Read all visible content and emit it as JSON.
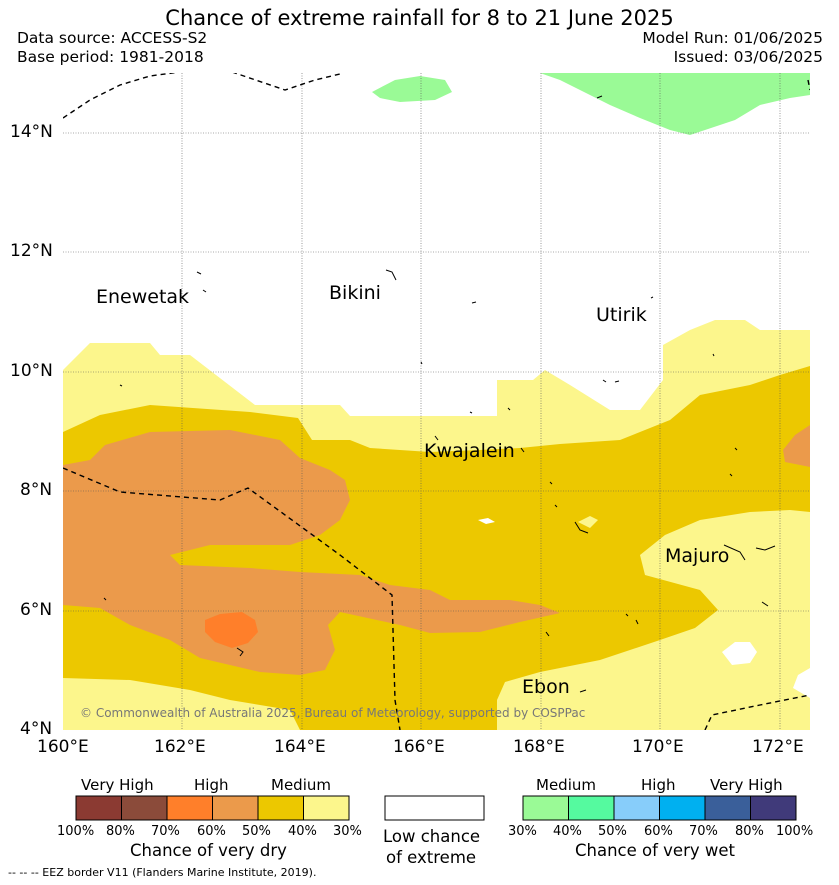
{
  "title": "Chance of extreme rainfall for 8 to 21 June 2025",
  "data_source": "Data source: ACCESS-S2",
  "base_period": "Base period: 1981-2018",
  "model_run": "Model Run: 01/06/2025",
  "issued": "Issued: 03/06/2025",
  "map": {
    "lat_labels": [
      "14°N",
      "12°N",
      "10°N",
      "8°N",
      "6°N",
      "4°N"
    ],
    "lon_labels": [
      "160°E",
      "162°E",
      "164°E",
      "166°E",
      "168°E",
      "170°E",
      "172°E"
    ],
    "places": {
      "enewetak": "Enewetak",
      "bikini": "Bikini",
      "utirik": "Utirik",
      "kwajalein": "Kwajalein",
      "majuro": "Majuro",
      "ebon": "Ebon"
    },
    "copyright": "© Commonwealth of Australia 2025, Bureau of Meteorology, supported by COSPPac",
    "colors": {
      "dry_30_40": "#fcf68c",
      "dry_40_50": "#ecc800",
      "dry_50_60": "#eb9a4b",
      "dry_60_70": "#ff7f2a",
      "wet_30_40": "#9afa96"
    }
  },
  "dry_legend": {
    "headers": {
      "very_high": "Very High",
      "high": "High",
      "medium": "Medium"
    },
    "colors": [
      "#8b3a32",
      "#8b4b3a",
      "#ff7f2a",
      "#eb9a4b",
      "#ecc800",
      "#fcf68c"
    ],
    "ticks": [
      "100%",
      "80%",
      "70%",
      "60%",
      "50%",
      "40%",
      "30%"
    ],
    "title": "Chance of very dry"
  },
  "low_legend": {
    "line1": "Low chance",
    "line2": "of extreme"
  },
  "wet_legend": {
    "headers": {
      "medium": "Medium",
      "high": "High",
      "very_high": "Very High"
    },
    "colors": [
      "#9afa96",
      "#55fa9f",
      "#87cdfa",
      "#00b0f0",
      "#3a5f9a",
      "#403a7a"
    ],
    "ticks": [
      "30%",
      "40%",
      "50%",
      "60%",
      "70%",
      "80%",
      "100%"
    ],
    "title": "Chance of very wet"
  },
  "eez_note": "--  --  -- EEZ border V11 (Flanders Marine Institute, 2019)."
}
